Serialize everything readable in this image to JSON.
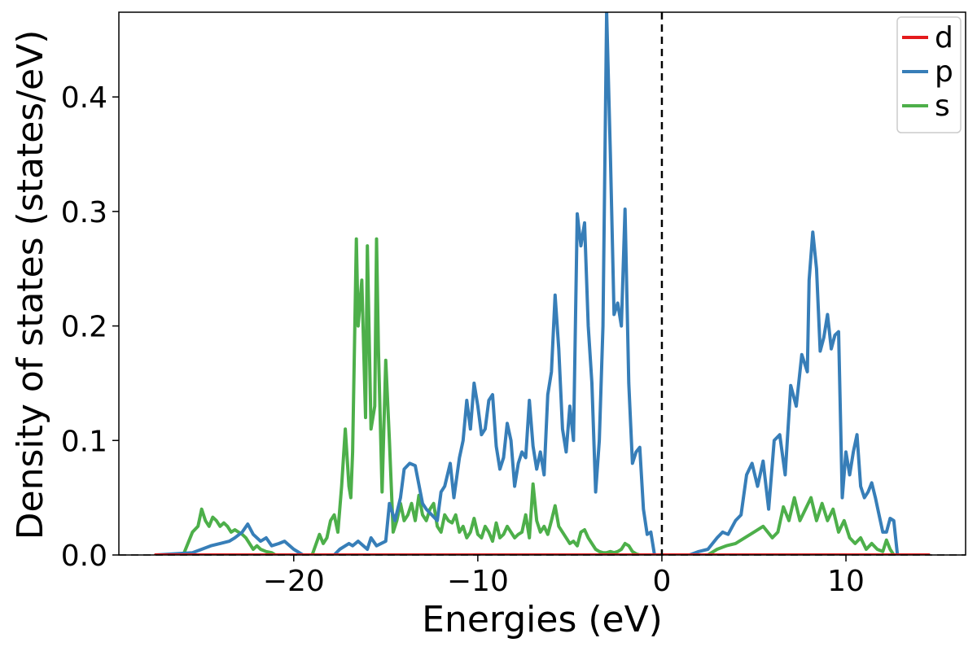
{
  "chart_data": {
    "type": "line",
    "xlabel": "Energies (eV)",
    "ylabel": "Density of states (states/eV)",
    "xlim": [
      -29.5,
      16.5
    ],
    "ylim": [
      0,
      0.474
    ],
    "xticks": [
      {
        "value": -20,
        "label": "−20"
      },
      {
        "value": -10,
        "label": "−10"
      },
      {
        "value": 0,
        "label": "0"
      },
      {
        "value": 10,
        "label": "10"
      }
    ],
    "yticks": [
      {
        "value": 0.0,
        "label": "0.0"
      },
      {
        "value": 0.1,
        "label": "0.1"
      },
      {
        "value": 0.2,
        "label": "0.2"
      },
      {
        "value": 0.3,
        "label": "0.3"
      },
      {
        "value": 0.4,
        "label": "0.4"
      }
    ],
    "fermi_level": 0,
    "legend_position": "top-right",
    "series": [
      {
        "name": "d",
        "color": "#e41a1c",
        "x": [
          -27.5,
          14.5
        ],
        "y": [
          0.0,
          0.0
        ]
      },
      {
        "name": "p",
        "color": "#377eb8",
        "x": [
          -27.5,
          -25.5,
          -25.0,
          -24.5,
          -24.0,
          -23.5,
          -23.2,
          -22.8,
          -22.5,
          -22.2,
          -21.8,
          -21.5,
          -21.2,
          -20.8,
          -20.5,
          -20.0,
          -19.5,
          -17.8,
          -17.5,
          -17.0,
          -16.8,
          -16.5,
          -16.0,
          -15.8,
          -15.5,
          -15.0,
          -14.8,
          -14.5,
          -14.2,
          -14.0,
          -13.7,
          -13.4,
          -13.0,
          -12.8,
          -12.5,
          -12.2,
          -12.0,
          -11.8,
          -11.5,
          -11.3,
          -11.0,
          -10.8,
          -10.6,
          -10.4,
          -10.2,
          -10.0,
          -9.8,
          -9.6,
          -9.4,
          -9.2,
          -9.0,
          -8.8,
          -8.6,
          -8.4,
          -8.2,
          -8.0,
          -7.8,
          -7.6,
          -7.4,
          -7.2,
          -7.0,
          -6.8,
          -6.6,
          -6.4,
          -6.2,
          -6.0,
          -5.8,
          -5.6,
          -5.4,
          -5.2,
          -5.0,
          -4.8,
          -4.6,
          -4.4,
          -4.2,
          -4.0,
          -3.8,
          -3.6,
          -3.4,
          -3.2,
          -3.0,
          -2.8,
          -2.6,
          -2.4,
          -2.2,
          -2.0,
          -1.8,
          -1.6,
          -1.4,
          -1.2,
          -1.0,
          -0.8,
          -0.6,
          -0.4,
          1.0,
          1.5,
          2.0,
          2.5,
          3.0,
          3.3,
          3.6,
          4.0,
          4.3,
          4.6,
          4.9,
          5.2,
          5.5,
          5.8,
          6.1,
          6.4,
          6.7,
          7.0,
          7.3,
          7.6,
          7.9,
          8.0,
          8.2,
          8.4,
          8.6,
          8.8,
          9.0,
          9.2,
          9.4,
          9.6,
          9.8,
          10.0,
          10.2,
          10.4,
          10.6,
          10.8,
          11.0,
          11.2,
          11.4,
          11.6,
          11.8,
          12.0,
          12.2,
          12.4,
          12.6,
          12.8,
          14.5
        ],
        "y": [
          0.0,
          0.002,
          0.005,
          0.008,
          0.01,
          0.012,
          0.015,
          0.02,
          0.027,
          0.018,
          0.012,
          0.015,
          0.008,
          0.01,
          0.012,
          0.005,
          0.0,
          0.0,
          0.005,
          0.01,
          0.008,
          0.012,
          0.005,
          0.015,
          0.008,
          0.012,
          0.045,
          0.03,
          0.05,
          0.075,
          0.08,
          0.078,
          0.045,
          0.04,
          0.035,
          0.03,
          0.055,
          0.06,
          0.08,
          0.05,
          0.085,
          0.1,
          0.135,
          0.11,
          0.15,
          0.13,
          0.105,
          0.11,
          0.135,
          0.14,
          0.095,
          0.075,
          0.085,
          0.115,
          0.1,
          0.06,
          0.08,
          0.09,
          0.085,
          0.135,
          0.095,
          0.075,
          0.09,
          0.07,
          0.14,
          0.16,
          0.227,
          0.18,
          0.11,
          0.09,
          0.13,
          0.1,
          0.298,
          0.27,
          0.29,
          0.2,
          0.15,
          0.055,
          0.1,
          0.2,
          0.474,
          0.35,
          0.21,
          0.22,
          0.2,
          0.302,
          0.15,
          0.08,
          0.09,
          0.094,
          0.04,
          0.018,
          0.02,
          0.0,
          0.0,
          0.0,
          0.003,
          0.005,
          0.015,
          0.02,
          0.018,
          0.03,
          0.035,
          0.07,
          0.08,
          0.06,
          0.082,
          0.04,
          0.1,
          0.105,
          0.07,
          0.148,
          0.13,
          0.175,
          0.16,
          0.24,
          0.282,
          0.25,
          0.178,
          0.19,
          0.21,
          0.18,
          0.192,
          0.195,
          0.05,
          0.09,
          0.07,
          0.09,
          0.105,
          0.06,
          0.05,
          0.055,
          0.063,
          0.05,
          0.035,
          0.02,
          0.02,
          0.032,
          0.03,
          0.0,
          0.0
        ]
      },
      {
        "name": "s",
        "color": "#4daf4a",
        "x": [
          -27.5,
          -26.0,
          -25.5,
          -25.2,
          -25.0,
          -24.8,
          -24.6,
          -24.4,
          -24.2,
          -24.0,
          -23.8,
          -23.6,
          -23.4,
          -23.2,
          -23.0,
          -22.8,
          -22.6,
          -22.4,
          -22.2,
          -22.0,
          -21.8,
          -21.5,
          -21.2,
          -21.0,
          -20.5,
          -19.5,
          -19.0,
          -18.6,
          -18.4,
          -18.2,
          -18.0,
          -17.8,
          -17.6,
          -17.4,
          -17.2,
          -17.0,
          -16.9,
          -16.8,
          -16.6,
          -16.5,
          -16.3,
          -16.1,
          -16.0,
          -15.8,
          -15.6,
          -15.5,
          -15.4,
          -15.2,
          -15.0,
          -14.8,
          -14.6,
          -14.4,
          -14.2,
          -14.0,
          -13.8,
          -13.6,
          -13.4,
          -13.2,
          -13.0,
          -12.8,
          -12.6,
          -12.4,
          -12.2,
          -12.0,
          -11.8,
          -11.6,
          -11.4,
          -11.2,
          -11.0,
          -10.8,
          -10.6,
          -10.4,
          -10.2,
          -10.0,
          -9.8,
          -9.6,
          -9.4,
          -9.2,
          -9.0,
          -8.8,
          -8.6,
          -8.4,
          -8.2,
          -8.0,
          -7.8,
          -7.6,
          -7.4,
          -7.2,
          -7.0,
          -6.8,
          -6.6,
          -6.4,
          -6.2,
          -6.0,
          -5.8,
          -5.6,
          -5.4,
          -5.2,
          -5.0,
          -4.8,
          -4.6,
          -4.4,
          -4.2,
          -4.0,
          -3.8,
          -3.6,
          -3.4,
          -3.2,
          -3.0,
          -2.8,
          -2.6,
          -2.4,
          -2.2,
          -2.0,
          -1.8,
          -1.6,
          -1.4,
          -1.2,
          2.0,
          2.5,
          3.0,
          3.5,
          4.0,
          4.5,
          5.0,
          5.5,
          6.0,
          6.3,
          6.6,
          6.9,
          7.2,
          7.5,
          7.8,
          8.1,
          8.4,
          8.7,
          9.0,
          9.3,
          9.6,
          9.9,
          10.2,
          10.5,
          10.8,
          11.1,
          11.4,
          11.7,
          12.0,
          12.2,
          12.4,
          12.6,
          14.5
        ],
        "y": [
          0.0,
          0.0,
          0.02,
          0.025,
          0.04,
          0.03,
          0.025,
          0.033,
          0.03,
          0.025,
          0.028,
          0.025,
          0.02,
          0.022,
          0.02,
          0.018,
          0.015,
          0.01,
          0.005,
          0.008,
          0.005,
          0.003,
          0.002,
          0.0,
          0.0,
          0.0,
          0.0,
          0.018,
          0.01,
          0.015,
          0.03,
          0.035,
          0.02,
          0.06,
          0.11,
          0.06,
          0.05,
          0.09,
          0.276,
          0.2,
          0.24,
          0.12,
          0.27,
          0.11,
          0.13,
          0.276,
          0.18,
          0.055,
          0.17,
          0.1,
          0.02,
          0.03,
          0.045,
          0.03,
          0.035,
          0.045,
          0.03,
          0.052,
          0.035,
          0.03,
          0.04,
          0.045,
          0.025,
          0.02,
          0.035,
          0.03,
          0.028,
          0.035,
          0.02,
          0.025,
          0.015,
          0.02,
          0.032,
          0.018,
          0.015,
          0.025,
          0.02,
          0.012,
          0.028,
          0.015,
          0.018,
          0.025,
          0.02,
          0.015,
          0.018,
          0.02,
          0.035,
          0.015,
          0.062,
          0.03,
          0.02,
          0.025,
          0.018,
          0.03,
          0.043,
          0.025,
          0.02,
          0.015,
          0.01,
          0.012,
          0.008,
          0.02,
          0.022,
          0.015,
          0.01,
          0.005,
          0.003,
          0.002,
          0.002,
          0.003,
          0.002,
          0.003,
          0.005,
          0.01,
          0.008,
          0.003,
          0.001,
          0.0,
          0.0,
          0.0,
          0.005,
          0.008,
          0.01,
          0.015,
          0.02,
          0.025,
          0.015,
          0.02,
          0.042,
          0.03,
          0.05,
          0.03,
          0.04,
          0.05,
          0.03,
          0.045,
          0.03,
          0.04,
          0.02,
          0.03,
          0.015,
          0.01,
          0.015,
          0.005,
          0.01,
          0.005,
          0.003,
          0.013,
          0.005,
          0.0,
          0.0
        ]
      }
    ]
  }
}
